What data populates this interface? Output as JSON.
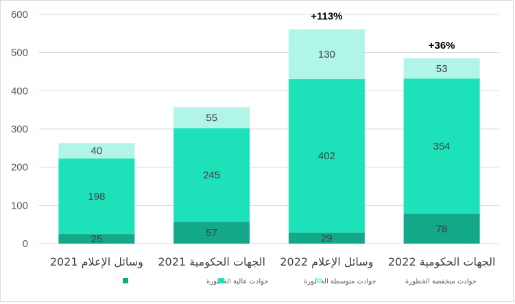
{
  "chart_data": {
    "type": "bar",
    "stacked": true,
    "categories": [
      "وسائل الإعلام 2021",
      "الجهات الحكومية 2021",
      "وسائل الإعلام 2022",
      "الجهات الحكومية 2022"
    ],
    "series": [
      {
        "name": "حوادث عالية الخطورة",
        "values": [
          25,
          57,
          29,
          78
        ],
        "color": "#14a88a"
      },
      {
        "name": "حوادث متوسطة الخطورة",
        "values": [
          198,
          245,
          402,
          354
        ],
        "color": "#1de1b9"
      },
      {
        "name": "حوادث منخفضة الخطورة",
        "values": [
          40,
          55,
          130,
          53
        ],
        "color": "#b0f5e8"
      }
    ],
    "annotations": [
      "",
      "",
      "+113%",
      "+36%"
    ],
    "ylim": [
      0,
      600
    ],
    "yticks": [
      0,
      100,
      200,
      300,
      400,
      500,
      600
    ],
    "grid": true,
    "legend": "bottom",
    "title": "",
    "xlabel": "",
    "ylabel": ""
  }
}
